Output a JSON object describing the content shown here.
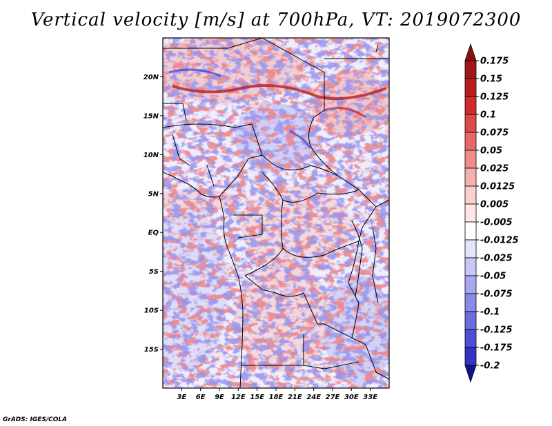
{
  "title": "Vertical velocity [m/s] at 700hPa, VT: 2019072300",
  "credit": "GrADS: IGES/COLA",
  "map": {
    "lon_range": [
      0,
      36
    ],
    "lat_range": [
      -20,
      25
    ],
    "lat_ticks": [
      {
        "value": 20,
        "label": "20N"
      },
      {
        "value": 15,
        "label": "15N"
      },
      {
        "value": 10,
        "label": "10N"
      },
      {
        "value": 5,
        "label": "5N"
      },
      {
        "value": 0,
        "label": "EQ"
      },
      {
        "value": -5,
        "label": "5S"
      },
      {
        "value": -10,
        "label": "10S"
      },
      {
        "value": -15,
        "label": "15S"
      }
    ],
    "lon_ticks": [
      {
        "value": 3,
        "label": "3E"
      },
      {
        "value": 6,
        "label": "6E"
      },
      {
        "value": 9,
        "label": "9E"
      },
      {
        "value": 12,
        "label": "12E"
      },
      {
        "value": 15,
        "label": "15E"
      },
      {
        "value": 18,
        "label": "18E"
      },
      {
        "value": 21,
        "label": "21E"
      },
      {
        "value": 24,
        "label": "24E"
      },
      {
        "value": 27,
        "label": "27E"
      },
      {
        "value": 30,
        "label": "30E"
      },
      {
        "value": 33,
        "label": "33E"
      }
    ]
  },
  "colorbar": {
    "levels": [
      {
        "label": "0.175",
        "color": "#a01616"
      },
      {
        "label": "0.15",
        "color": "#b91e1e"
      },
      {
        "label": "0.125",
        "color": "#d02a2a"
      },
      {
        "label": "0.1",
        "color": "#e04848"
      },
      {
        "label": "0.075",
        "color": "#e86868"
      },
      {
        "label": "0.05",
        "color": "#ef8c8c"
      },
      {
        "label": "0.025",
        "color": "#f5b0b0"
      },
      {
        "label": "0.0125",
        "color": "#f9cfcf"
      },
      {
        "label": "0.005",
        "color": "#fce6e6"
      },
      {
        "label": "-0.005",
        "color": "#ffffff"
      },
      {
        "label": "-0.0125",
        "color": "#e4e4fb"
      },
      {
        "label": "-0.025",
        "color": "#c8c8f6"
      },
      {
        "label": "-0.05",
        "color": "#a8a8ef"
      },
      {
        "label": "-0.075",
        "color": "#8a8ae8"
      },
      {
        "label": "-0.1",
        "color": "#6c6ce0"
      },
      {
        "label": "-0.125",
        "color": "#4e4ed6"
      },
      {
        "label": "-0.175",
        "color": "#3434c4"
      },
      {
        "label": "-0.2",
        "color": "#1e1eaa"
      }
    ],
    "top_arrow_color": "#8c0f0f",
    "bottom_arrow_color": "#12128c"
  }
}
